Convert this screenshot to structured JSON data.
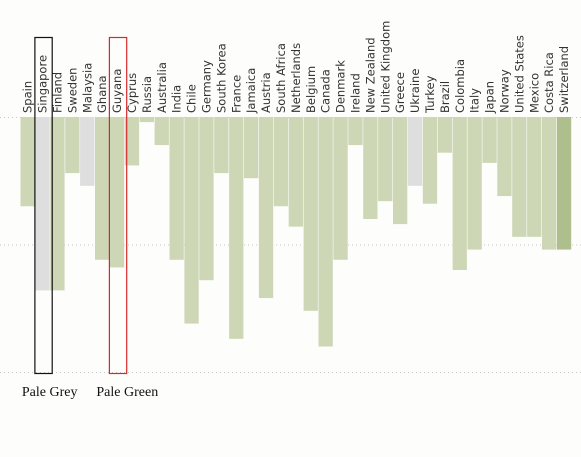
{
  "chart_data": {
    "type": "bar",
    "title": "",
    "xlabel": "",
    "ylabel": "",
    "orientation": "downward",
    "ylim": [
      0,
      1
    ],
    "grid": true,
    "categories": [
      "Spain",
      "Singapore",
      "Finland",
      "Sweden",
      "Malaysia",
      "Ghana",
      "Guyana",
      "Cyprus",
      "Russia",
      "Australia",
      "India",
      "Chile",
      "Germany",
      "South Korea",
      "France",
      "Jamaica",
      "Austria",
      "South Africa",
      "Netherlands",
      "Belgium",
      "Canada",
      "Denmark",
      "Ireland",
      "New Zealand",
      "United Kingdom",
      "Greece",
      "Ukraine",
      "Turkey",
      "Brazil",
      "Colombia",
      "Italy",
      "Japan",
      "Norway",
      "United States",
      "Mexico",
      "Costa Rica",
      "Switzerland"
    ],
    "values": [
      0.35,
      0.68,
      0.68,
      0.22,
      0.27,
      0.56,
      0.59,
      0.19,
      0.02,
      0.11,
      0.56,
      0.81,
      0.64,
      0.22,
      0.87,
      0.24,
      0.71,
      0.35,
      0.43,
      0.76,
      0.9,
      0.56,
      0.11,
      0.4,
      0.33,
      0.42,
      0.27,
      0.34,
      0.14,
      0.6,
      0.52,
      0.18,
      0.31,
      0.47,
      0.47,
      0.52,
      0.52
    ],
    "colors": {
      "default": "#cdd7b6",
      "pale_grey": "#dedede",
      "pale_green": "#aebf8d"
    },
    "bar_color_keys": [
      "default",
      "pale_grey",
      "default",
      "default",
      "pale_grey",
      "default",
      "default",
      "default",
      "default",
      "default",
      "default",
      "default",
      "default",
      "default",
      "default",
      "default",
      "default",
      "default",
      "default",
      "default",
      "default",
      "default",
      "default",
      "default",
      "default",
      "default",
      "pale_grey",
      "default",
      "default",
      "default",
      "default",
      "default",
      "default",
      "default",
      "default",
      "default",
      "pale_green"
    ],
    "highlights": [
      {
        "category": "Singapore",
        "label": "Pale Grey",
        "box_color": "#111111"
      },
      {
        "category": "Guyana",
        "label": "Pale Green",
        "box_color": "#d62a2a"
      }
    ]
  }
}
